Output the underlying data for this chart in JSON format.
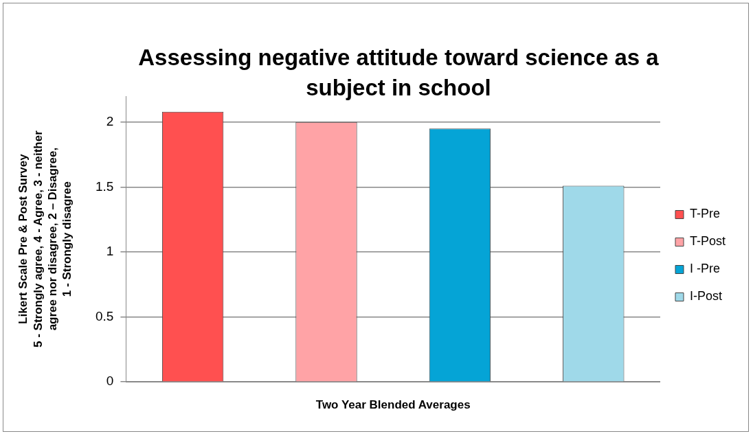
{
  "chart_data": {
    "type": "bar",
    "title": "Assessing negative attitude toward science as a subject in school",
    "xlabel": "Two Year Blended Averages",
    "ylabel": "Likert Scale Pre & Post Survey\n5 - Strongly agree, 4 - Agree, 3 - neither\nagree nor disagree, 2 – Disagree,\n1 - Strongly disagree",
    "categories": [
      null
    ],
    "series": [
      {
        "name": "T-Pre",
        "color": "#ff5050",
        "values": [
          2.08
        ]
      },
      {
        "name": "T-Post",
        "color": "#ffa3a6",
        "values": [
          2.0
        ]
      },
      {
        "name": "I -Pre",
        "color": "#05a4d6",
        "values": [
          1.95
        ]
      },
      {
        "name": "I-Post",
        "color": "#9fd9e9",
        "values": [
          1.51
        ]
      }
    ],
    "ylim": [
      0,
      2.2
    ],
    "yticks": [
      0,
      0.5,
      1,
      1.5,
      2
    ],
    "grid": "y",
    "legend": "right"
  }
}
